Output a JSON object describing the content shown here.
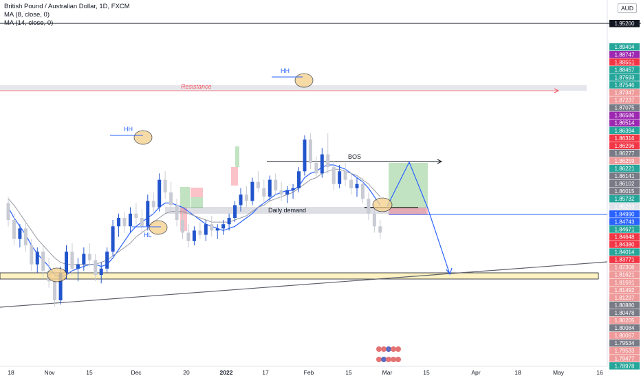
{
  "header": {
    "symbol_line": "British Pound / Australian Dollar, 1D, FXCM",
    "indicators": [
      "MA (8, close, 0)",
      "MA (14, close, 0)"
    ],
    "currency_badge": "AUD"
  },
  "chart_data": {
    "type": "candlestick",
    "ylim": [
      1.7888,
      1.962
    ],
    "x_ticks": [
      "18",
      "Nov",
      "15",
      "Dec",
      "20",
      "2022",
      "17",
      "Feb",
      "15",
      "Mar",
      "15",
      "Apr",
      "18",
      "May",
      "16"
    ],
    "y_ticks": [
      "1.95200",
      "1.89404",
      "1.88747",
      "1.88551",
      "1.88457",
      "1.87593",
      "1.87546",
      "1.87347",
      "1.87237",
      "1.87075",
      "1.86586",
      "1.86514",
      "1.86394",
      "1.86316",
      "1.86296",
      "1.86277",
      "1.86259",
      "1.86221",
      "1.86141",
      "1.86102",
      "1.86015",
      "1.85732",
      "1.85263",
      "1.84990",
      "1.84743",
      "1.84671",
      "1.84648",
      "1.84380",
      "1.84014",
      "1.83771",
      "1.82308",
      "1.81621",
      "1.81591",
      "1.81492",
      "1.81297",
      "1.80880",
      "1.80478",
      "1.80205",
      "1.80084",
      "1.80067",
      "1.79534",
      "1.79533",
      "1.79477",
      "1.78978"
    ],
    "price_tag_colors": [
      "#ffffff",
      "#26a69a",
      "#9c27b0",
      "#f23645",
      "#26a69a",
      "#26a69a",
      "#26a69a",
      "#ef9a9a",
      "#ef9a9a",
      "#787b86",
      "#9c27b0",
      "#9c27b0",
      "#26a69a",
      "#f23645",
      "#f23645",
      "#787b86",
      "#ef9a9a",
      "#26a69a",
      "#787b86",
      "#787b86",
      "#787b86",
      "#26a69a",
      "#e0e3eb",
      "#2962ff",
      "#2962ff",
      "#26a69a",
      "#f23645",
      "#f23645",
      "#26a69a",
      "#f23645",
      "#ef9a9a",
      "#ef9a9a",
      "#ef9a9a",
      "#ef9a9a",
      "#ef9a9a",
      "#787b86",
      "#787b86",
      "#ef9a9a",
      "#787b86",
      "#ef9a9a",
      "#787b86",
      "#ef9a9a",
      "#ef9a9a",
      "#26a69a"
    ],
    "annotations": {
      "resistance": "Resistance",
      "bos": "BOS",
      "daily_demand": "Daily demand",
      "swings": [
        "HH",
        "HH",
        "HL"
      ]
    },
    "candles": [
      [
        1.866,
        1.869,
        1.855,
        1.858
      ],
      [
        1.858,
        1.861,
        1.846,
        1.849
      ],
      [
        1.849,
        1.856,
        1.845,
        1.854
      ],
      [
        1.854,
        1.857,
        1.843,
        1.846
      ],
      [
        1.846,
        1.849,
        1.834,
        1.837
      ],
      [
        1.837,
        1.845,
        1.833,
        1.843
      ],
      [
        1.843,
        1.846,
        1.831,
        1.834
      ],
      [
        1.834,
        1.84,
        1.826,
        1.829
      ],
      [
        1.829,
        1.834,
        1.817,
        1.82
      ],
      [
        1.82,
        1.836,
        1.818,
        1.833
      ],
      [
        1.833,
        1.846,
        1.83,
        1.843
      ],
      [
        1.843,
        1.847,
        1.832,
        1.835
      ],
      [
        1.835,
        1.84,
        1.829,
        1.837
      ],
      [
        1.837,
        1.845,
        1.834,
        1.842
      ],
      [
        1.842,
        1.847,
        1.836,
        1.839
      ],
      [
        1.839,
        1.842,
        1.829,
        1.832
      ],
      [
        1.832,
        1.838,
        1.828,
        1.835
      ],
      [
        1.835,
        1.845,
        1.833,
        1.843
      ],
      [
        1.843,
        1.858,
        1.841,
        1.855
      ],
      [
        1.855,
        1.861,
        1.85,
        1.859
      ],
      [
        1.859,
        1.862,
        1.852,
        1.855
      ],
      [
        1.855,
        1.864,
        1.852,
        1.861
      ],
      [
        1.861,
        1.866,
        1.856,
        1.859
      ],
      [
        1.859,
        1.863,
        1.852,
        1.855
      ],
      [
        1.855,
        1.87,
        1.853,
        1.867
      ],
      [
        1.867,
        1.871,
        1.861,
        1.864
      ],
      [
        1.864,
        1.88,
        1.862,
        1.877
      ],
      [
        1.877,
        1.881,
        1.868,
        1.871
      ],
      [
        1.871,
        1.876,
        1.862,
        1.865
      ],
      [
        1.865,
        1.868,
        1.855,
        1.858
      ],
      [
        1.858,
        1.862,
        1.849,
        1.852
      ],
      [
        1.852,
        1.856,
        1.845,
        1.848
      ],
      [
        1.848,
        1.855,
        1.846,
        1.853
      ],
      [
        1.853,
        1.857,
        1.849,
        1.851
      ],
      [
        1.851,
        1.858,
        1.848,
        1.856
      ],
      [
        1.856,
        1.86,
        1.85,
        1.853
      ],
      [
        1.853,
        1.856,
        1.849,
        1.854
      ],
      [
        1.854,
        1.858,
        1.851,
        1.856
      ],
      [
        1.856,
        1.861,
        1.853,
        1.859
      ],
      [
        1.859,
        1.867,
        1.857,
        1.865
      ],
      [
        1.865,
        1.873,
        1.862,
        1.87
      ],
      [
        1.87,
        1.874,
        1.864,
        1.867
      ],
      [
        1.867,
        1.878,
        1.865,
        1.876
      ],
      [
        1.876,
        1.881,
        1.871,
        1.873
      ],
      [
        1.873,
        1.877,
        1.866,
        1.869
      ],
      [
        1.869,
        1.879,
        1.867,
        1.877
      ],
      [
        1.877,
        1.88,
        1.87,
        1.872
      ],
      [
        1.872,
        1.876,
        1.867,
        1.87
      ],
      [
        1.87,
        1.874,
        1.866,
        1.872
      ],
      [
        1.872,
        1.875,
        1.868,
        1.873
      ],
      [
        1.873,
        1.883,
        1.871,
        1.881
      ],
      [
        1.881,
        1.898,
        1.879,
        1.896
      ],
      [
        1.896,
        1.899,
        1.882,
        1.885
      ],
      [
        1.885,
        1.888,
        1.878,
        1.88
      ],
      [
        1.88,
        1.892,
        1.878,
        1.889
      ],
      [
        1.889,
        1.899,
        1.88,
        1.883
      ],
      [
        1.883,
        1.886,
        1.872,
        1.875
      ],
      [
        1.875,
        1.884,
        1.873,
        1.881
      ],
      [
        1.881,
        1.885,
        1.874,
        1.877
      ],
      [
        1.877,
        1.88,
        1.87,
        1.873
      ],
      [
        1.873,
        1.878,
        1.869,
        1.875
      ],
      [
        1.875,
        1.878,
        1.866,
        1.868
      ],
      [
        1.868,
        1.871,
        1.858,
        1.861
      ],
      [
        1.861,
        1.864,
        1.852,
        1.855
      ],
      [
        1.855,
        1.858,
        1.849,
        1.852
      ]
    ],
    "ma8": [
      1.864,
      1.859,
      1.855,
      1.851,
      1.846,
      1.842,
      1.839,
      1.836,
      1.832,
      1.831,
      1.832,
      1.834,
      1.835,
      1.836,
      1.837,
      1.837,
      1.836,
      1.837,
      1.84,
      1.844,
      1.848,
      1.852,
      1.855,
      1.857,
      1.859,
      1.861,
      1.864,
      1.866,
      1.866,
      1.865,
      1.864,
      1.862,
      1.86,
      1.858,
      1.856,
      1.855,
      1.854,
      1.853,
      1.854,
      1.855,
      1.857,
      1.859,
      1.861,
      1.864,
      1.866,
      1.868,
      1.87,
      1.871,
      1.872,
      1.872,
      1.874,
      1.878,
      1.88,
      1.881,
      1.883,
      1.884,
      1.884,
      1.883,
      1.882,
      1.88,
      1.878,
      1.876,
      1.873,
      1.869,
      1.865
    ],
    "ma14": [
      1.868,
      1.865,
      1.861,
      1.857,
      1.853,
      1.849,
      1.846,
      1.843,
      1.84,
      1.838,
      1.837,
      1.837,
      1.837,
      1.837,
      1.837,
      1.837,
      1.838,
      1.839,
      1.841,
      1.843,
      1.845,
      1.847,
      1.85,
      1.852,
      1.854,
      1.857,
      1.859,
      1.861,
      1.862,
      1.862,
      1.862,
      1.861,
      1.86,
      1.859,
      1.858,
      1.857,
      1.857,
      1.857,
      1.857,
      1.858,
      1.859,
      1.86,
      1.862,
      1.864,
      1.865,
      1.867,
      1.868,
      1.869,
      1.87,
      1.871,
      1.873,
      1.875,
      1.877,
      1.878,
      1.88,
      1.881,
      1.882,
      1.882,
      1.881,
      1.88,
      1.879,
      1.877,
      1.875,
      1.872,
      1.869
    ]
  }
}
